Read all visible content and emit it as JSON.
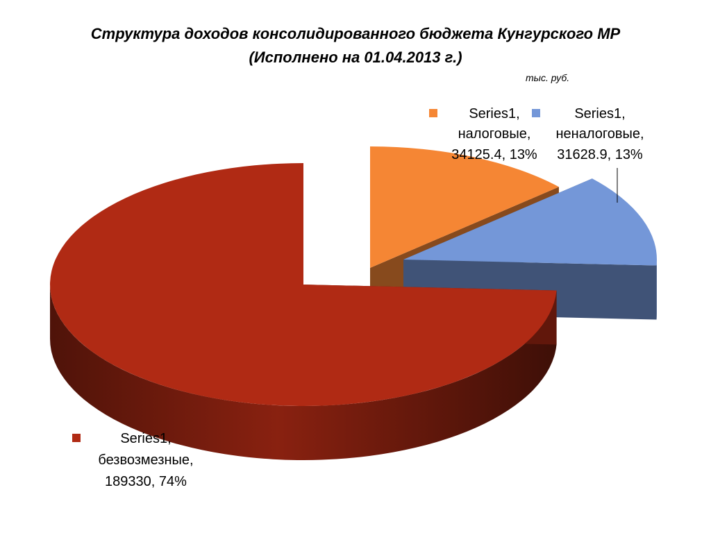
{
  "title": {
    "line1": "Структура доходов консолидированного бюджета Кунгурского МР",
    "line2": "(Исполнено на 01.04.2013 г.)"
  },
  "unit_label": "тыс. руб.",
  "chart_data": {
    "type": "pie",
    "three_d": true,
    "exploded": true,
    "series": [
      {
        "name": "Series1",
        "categories": [
          "налоговые",
          "неналоговые",
          "безвозмезные"
        ],
        "values": [
          34125.4,
          31628.9,
          189330
        ],
        "percent_labels": [
          "13%",
          "13%",
          "74%"
        ],
        "colors": [
          "#f58634",
          "#7497d8",
          "#b02a14"
        ]
      }
    ],
    "data_labels": [
      {
        "series": "Series1,",
        "category": "налоговые,",
        "value_text": "34125.4, 13%"
      },
      {
        "series": "Series1,",
        "category": "неналоговые,",
        "value_text": "31628.9, 13%"
      },
      {
        "series": "Series1,",
        "category": "безвозмезные,",
        "value_text": "189330, 74%"
      }
    ],
    "legend_keys_in_labels": true
  }
}
